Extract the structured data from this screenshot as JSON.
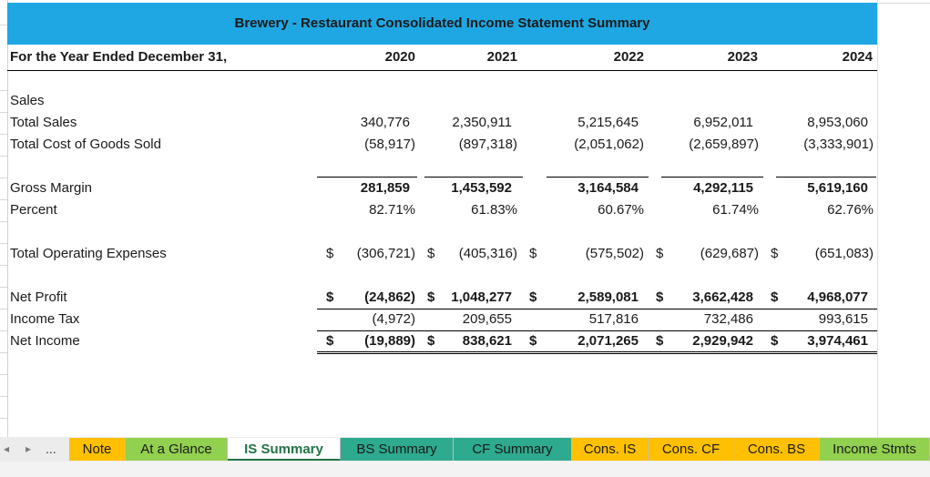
{
  "title": "Brewery - Restaurant Consolidated Income Statement Summary",
  "period_label": "For the Year Ended December 31,",
  "years": [
    "2020",
    "2021",
    "2022",
    "2023",
    "2024"
  ],
  "rows": {
    "sales_heading": "Sales",
    "total_sales": {
      "label": "Total Sales",
      "values": [
        "340,776",
        "2,350,911",
        "5,215,645",
        "6,952,011",
        "8,953,060"
      ]
    },
    "cogs": {
      "label": "Total Cost of Goods Sold",
      "values": [
        "(58,917)",
        "(897,318)",
        "(2,051,062)",
        "(2,659,897)",
        "(3,333,901)"
      ]
    },
    "gross_margin": {
      "label": "Gross Margin",
      "values": [
        "281,859",
        "1,453,592",
        "3,164,584",
        "4,292,115",
        "5,619,160"
      ]
    },
    "percent": {
      "label": "Percent",
      "values": [
        "82.71%",
        "61.83%",
        "60.67%",
        "61.74%",
        "62.76%"
      ]
    },
    "opex": {
      "label": "Total Operating Expenses",
      "values": [
        "(306,721)",
        "(405,316)",
        "(575,502)",
        "(629,687)",
        "(651,083)"
      ]
    },
    "net_profit": {
      "label": "Net Profit",
      "values": [
        "(24,862)",
        "1,048,277",
        "2,589,081",
        "3,662,428",
        "4,968,077"
      ]
    },
    "income_tax": {
      "label": "Income Tax",
      "values": [
        "(4,972)",
        "209,655",
        "517,816",
        "732,486",
        "993,615"
      ]
    },
    "net_income": {
      "label": "Net Income",
      "values": [
        "(19,889)",
        "838,621",
        "2,071,265",
        "2,929,942",
        "3,974,461"
      ]
    }
  },
  "currency_symbol": "$",
  "tabs": [
    {
      "label": "Note",
      "color": "#ffc000"
    },
    {
      "label": "At a Glance",
      "color": "#92d050"
    },
    {
      "label": "IS Summary",
      "color": "#ffffff",
      "active": true
    },
    {
      "label": "BS Summary",
      "color": "#2eaa8e"
    },
    {
      "label": "CF Summary",
      "color": "#2eaa8e"
    },
    {
      "label": "Cons. IS",
      "color": "#ffc000"
    },
    {
      "label": "Cons. CF",
      "color": "#ffc000"
    },
    {
      "label": "Cons. BS",
      "color": "#ffc000"
    },
    {
      "label": "Income Stmts",
      "color": "#92d050"
    }
  ],
  "nav": {
    "prev": "◂",
    "next": "▸",
    "more": "..."
  }
}
